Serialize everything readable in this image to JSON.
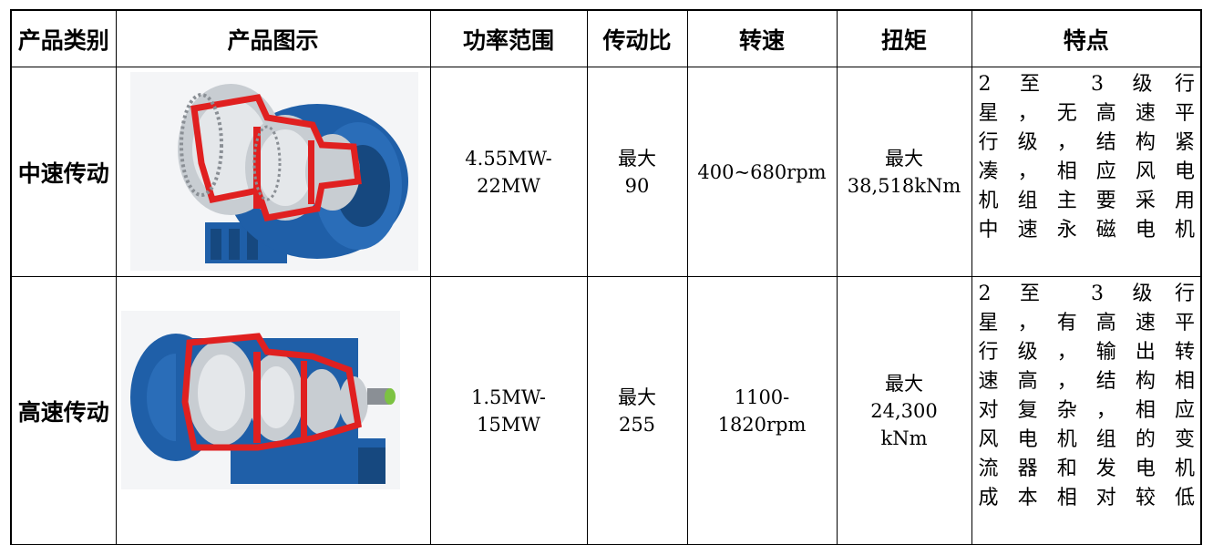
{
  "headers": [
    "产品类别",
    "产品图示",
    "功率范围",
    "传动比",
    "转速",
    "扭矩",
    "特点"
  ],
  "rows": [
    {
      "category": "中速传动",
      "image_icon": "medium-speed-gearbox-image",
      "power": [
        "4.55MW-",
        "22MW"
      ],
      "ratio": [
        "最大",
        "90"
      ],
      "speed": [
        "400~680rpm"
      ],
      "torque": [
        "最大",
        "38,518kNm"
      ],
      "features": [
        "2 至 3 级行",
        "星，无高速平",
        "行级，结构紧",
        "凑，相应风电",
        "机组主要采用",
        "中速永磁电机"
      ]
    },
    {
      "category": "高速传动",
      "image_icon": "high-speed-gearbox-image",
      "power": [
        "1.5MW-",
        "15MW"
      ],
      "ratio": [
        "最大",
        "255"
      ],
      "speed": [
        "1100-",
        "1820rpm"
      ],
      "torque": [
        "最大",
        "24,300",
        "kNm"
      ],
      "features": [
        "2 至 3 级行",
        "星，有高速平",
        "行级，输出转",
        "速高，结构相",
        "对复杂，相应",
        "风电机组的变",
        "流器和发电机",
        "成本相对较低"
      ]
    }
  ],
  "colors": {
    "casing_blue": "#1f5fa8",
    "cutaway_red": "#e02020",
    "metal_gray": "#c8cdd2"
  }
}
